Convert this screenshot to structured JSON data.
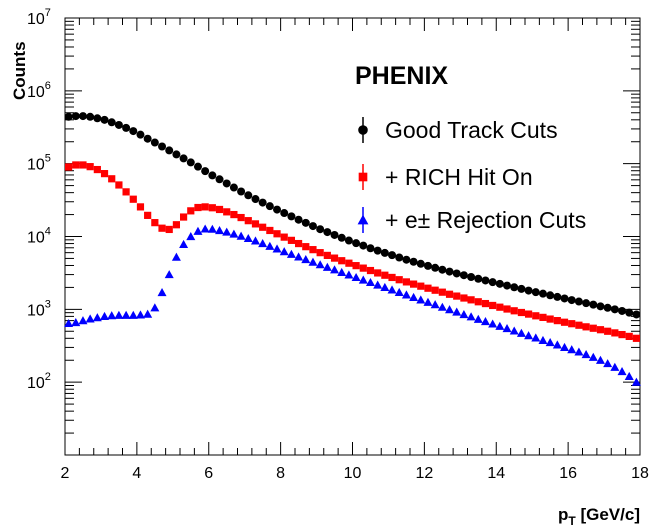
{
  "chart_data": {
    "type": "scatter",
    "title": "",
    "annotation": "PHENIX",
    "xlabel_main": "p",
    "xlabel_sub": "T",
    "xlabel_unit": " [GeV/c]",
    "ylabel": "Counts",
    "xlim": [
      2,
      18
    ],
    "ylim": [
      10,
      10000000
    ],
    "y_scale": "log",
    "grid": false,
    "legend_position": "top-right",
    "x_ticks": [
      2,
      4,
      6,
      8,
      10,
      12,
      14,
      16,
      18
    ],
    "x_tick_labels": [
      "2",
      "4",
      "6",
      "8",
      "10",
      "12",
      "14",
      "16",
      "18"
    ],
    "y_ticks": [
      100,
      1000,
      10000,
      100000,
      1000000,
      10000000
    ],
    "y_tick_base": "10",
    "y_tick_exponents": [
      "2",
      "3",
      "4",
      "5",
      "6",
      "7"
    ],
    "series": [
      {
        "name": "Good Track Cuts",
        "color": "#000000",
        "marker": "circle",
        "x": [
          2.1,
          2.3,
          2.5,
          2.7,
          2.9,
          3.1,
          3.3,
          3.5,
          3.7,
          3.9,
          4.1,
          4.3,
          4.5,
          4.7,
          4.9,
          5.1,
          5.3,
          5.5,
          5.7,
          5.9,
          6.1,
          6.3,
          6.5,
          6.7,
          6.9,
          7.1,
          7.3,
          7.5,
          7.7,
          7.9,
          8.1,
          8.3,
          8.5,
          8.7,
          8.9,
          9.1,
          9.3,
          9.5,
          9.7,
          9.9,
          10.1,
          10.3,
          10.5,
          10.7,
          10.9,
          11.1,
          11.3,
          11.5,
          11.7,
          11.9,
          12.1,
          12.3,
          12.5,
          12.7,
          12.9,
          13.1,
          13.3,
          13.5,
          13.7,
          13.9,
          14.1,
          14.3,
          14.5,
          14.7,
          14.9,
          15.1,
          15.3,
          15.5,
          15.7,
          15.9,
          16.1,
          16.3,
          16.5,
          16.7,
          16.9,
          17.1,
          17.3,
          17.5,
          17.7,
          17.9
        ],
        "y": [
          440000,
          450000,
          450000,
          440000,
          420000,
          400000,
          370000,
          340000,
          310000,
          280000,
          250000,
          220000,
          195000,
          172000,
          152000,
          134000,
          118000,
          104000,
          91000,
          79000,
          69000,
          61000,
          53500,
          47000,
          41500,
          36800,
          32700,
          29200,
          26100,
          23400,
          21000,
          18900,
          17000,
          15400,
          13900,
          12600,
          11500,
          10500,
          9600,
          8800,
          8100,
          7500,
          6900,
          6400,
          5950,
          5550,
          5150,
          4800,
          4500,
          4220,
          3950,
          3720,
          3500,
          3300,
          3110,
          2940,
          2780,
          2630,
          2490,
          2360,
          2240,
          2120,
          2010,
          1910,
          1810,
          1720,
          1640,
          1560,
          1480,
          1410,
          1340,
          1280,
          1215,
          1160,
          1100,
          1050,
          1000,
          950,
          900,
          850
        ]
      },
      {
        "name": "+ RICH Hit On",
        "color": "#ff0000",
        "marker": "square",
        "x": [
          2.1,
          2.3,
          2.5,
          2.7,
          2.9,
          3.1,
          3.3,
          3.5,
          3.7,
          3.9,
          4.1,
          4.3,
          4.5,
          4.7,
          4.9,
          5.1,
          5.3,
          5.5,
          5.7,
          5.9,
          6.1,
          6.3,
          6.5,
          6.7,
          6.9,
          7.1,
          7.3,
          7.5,
          7.7,
          7.9,
          8.1,
          8.3,
          8.5,
          8.7,
          8.9,
          9.1,
          9.3,
          9.5,
          9.7,
          9.9,
          10.1,
          10.3,
          10.5,
          10.7,
          10.9,
          11.1,
          11.3,
          11.5,
          11.7,
          11.9,
          12.1,
          12.3,
          12.5,
          12.7,
          12.9,
          13.1,
          13.3,
          13.5,
          13.7,
          13.9,
          14.1,
          14.3,
          14.5,
          14.7,
          14.9,
          15.1,
          15.3,
          15.5,
          15.7,
          15.9,
          16.1,
          16.3,
          16.5,
          16.7,
          16.9,
          17.1,
          17.3,
          17.5,
          17.7,
          17.9
        ],
        "y": [
          90000,
          96000,
          96000,
          91000,
          83000,
          73000,
          62000,
          51000,
          41000,
          32500,
          25500,
          19500,
          15500,
          13000,
          12500,
          14500,
          18500,
          22500,
          25000,
          25500,
          24800,
          23500,
          21800,
          20000,
          18200,
          16500,
          14900,
          13400,
          12100,
          10900,
          9800,
          8850,
          8000,
          7250,
          6600,
          6000,
          5500,
          5050,
          4650,
          4300,
          3980,
          3680,
          3410,
          3160,
          2940,
          2740,
          2550,
          2380,
          2220,
          2080,
          1950,
          1830,
          1720,
          1610,
          1520,
          1430,
          1350,
          1270,
          1200,
          1130,
          1070,
          1010,
          955,
          905,
          860,
          815,
          775,
          735,
          700,
          665,
          635,
          605,
          575,
          550,
          525,
          500,
          475,
          450,
          425,
          400
        ]
      },
      {
        "name": "+ e± Rejection Cuts",
        "color": "#0000ff",
        "marker": "triangle",
        "x": [
          2.1,
          2.3,
          2.5,
          2.7,
          2.9,
          3.1,
          3.3,
          3.5,
          3.7,
          3.9,
          4.1,
          4.3,
          4.5,
          4.7,
          4.9,
          5.1,
          5.3,
          5.5,
          5.7,
          5.9,
          6.1,
          6.3,
          6.5,
          6.7,
          6.9,
          7.1,
          7.3,
          7.5,
          7.7,
          7.9,
          8.1,
          8.3,
          8.5,
          8.7,
          8.9,
          9.1,
          9.3,
          9.5,
          9.7,
          9.9,
          10.1,
          10.3,
          10.5,
          10.7,
          10.9,
          11.1,
          11.3,
          11.5,
          11.7,
          11.9,
          12.1,
          12.3,
          12.5,
          12.7,
          12.9,
          13.1,
          13.3,
          13.5,
          13.7,
          13.9,
          14.1,
          14.3,
          14.5,
          14.7,
          14.9,
          15.1,
          15.3,
          15.5,
          15.7,
          15.9,
          16.1,
          16.3,
          16.5,
          16.7,
          16.9,
          17.1,
          17.3,
          17.5,
          17.7,
          17.9
        ],
        "y": [
          640,
          660,
          700,
          740,
          770,
          800,
          820,
          830,
          830,
          830,
          840,
          860,
          1050,
          1700,
          3000,
          5200,
          7800,
          10000,
          11800,
          12700,
          12600,
          12100,
          11500,
          10800,
          10100,
          9400,
          8700,
          8000,
          7350,
          6750,
          6200,
          5700,
          5250,
          4830,
          4450,
          4100,
          3780,
          3490,
          3220,
          2970,
          2740,
          2530,
          2340,
          2160,
          2000,
          1850,
          1710,
          1580,
          1460,
          1350,
          1250,
          1160,
          1070,
          990,
          920,
          850,
          790,
          730,
          680,
          630,
          585,
          545,
          505,
          470,
          435,
          405,
          375,
          350,
          325,
          300,
          280,
          260,
          240,
          220,
          200,
          180,
          160,
          140,
          120,
          100
        ]
      }
    ]
  }
}
